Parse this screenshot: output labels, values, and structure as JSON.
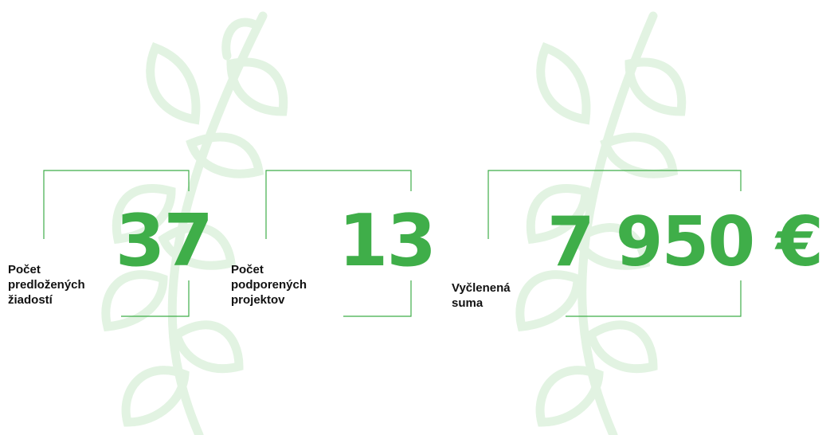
{
  "stats": [
    {
      "label": [
        "Počet",
        "predložených",
        "žiadostí"
      ],
      "value": "37"
    },
    {
      "label": [
        "Počet",
        "podporených",
        "projektov"
      ],
      "value": "13"
    },
    {
      "label": [
        "Vyčlenená",
        "suma"
      ],
      "value": "7 950 €"
    }
  ]
}
